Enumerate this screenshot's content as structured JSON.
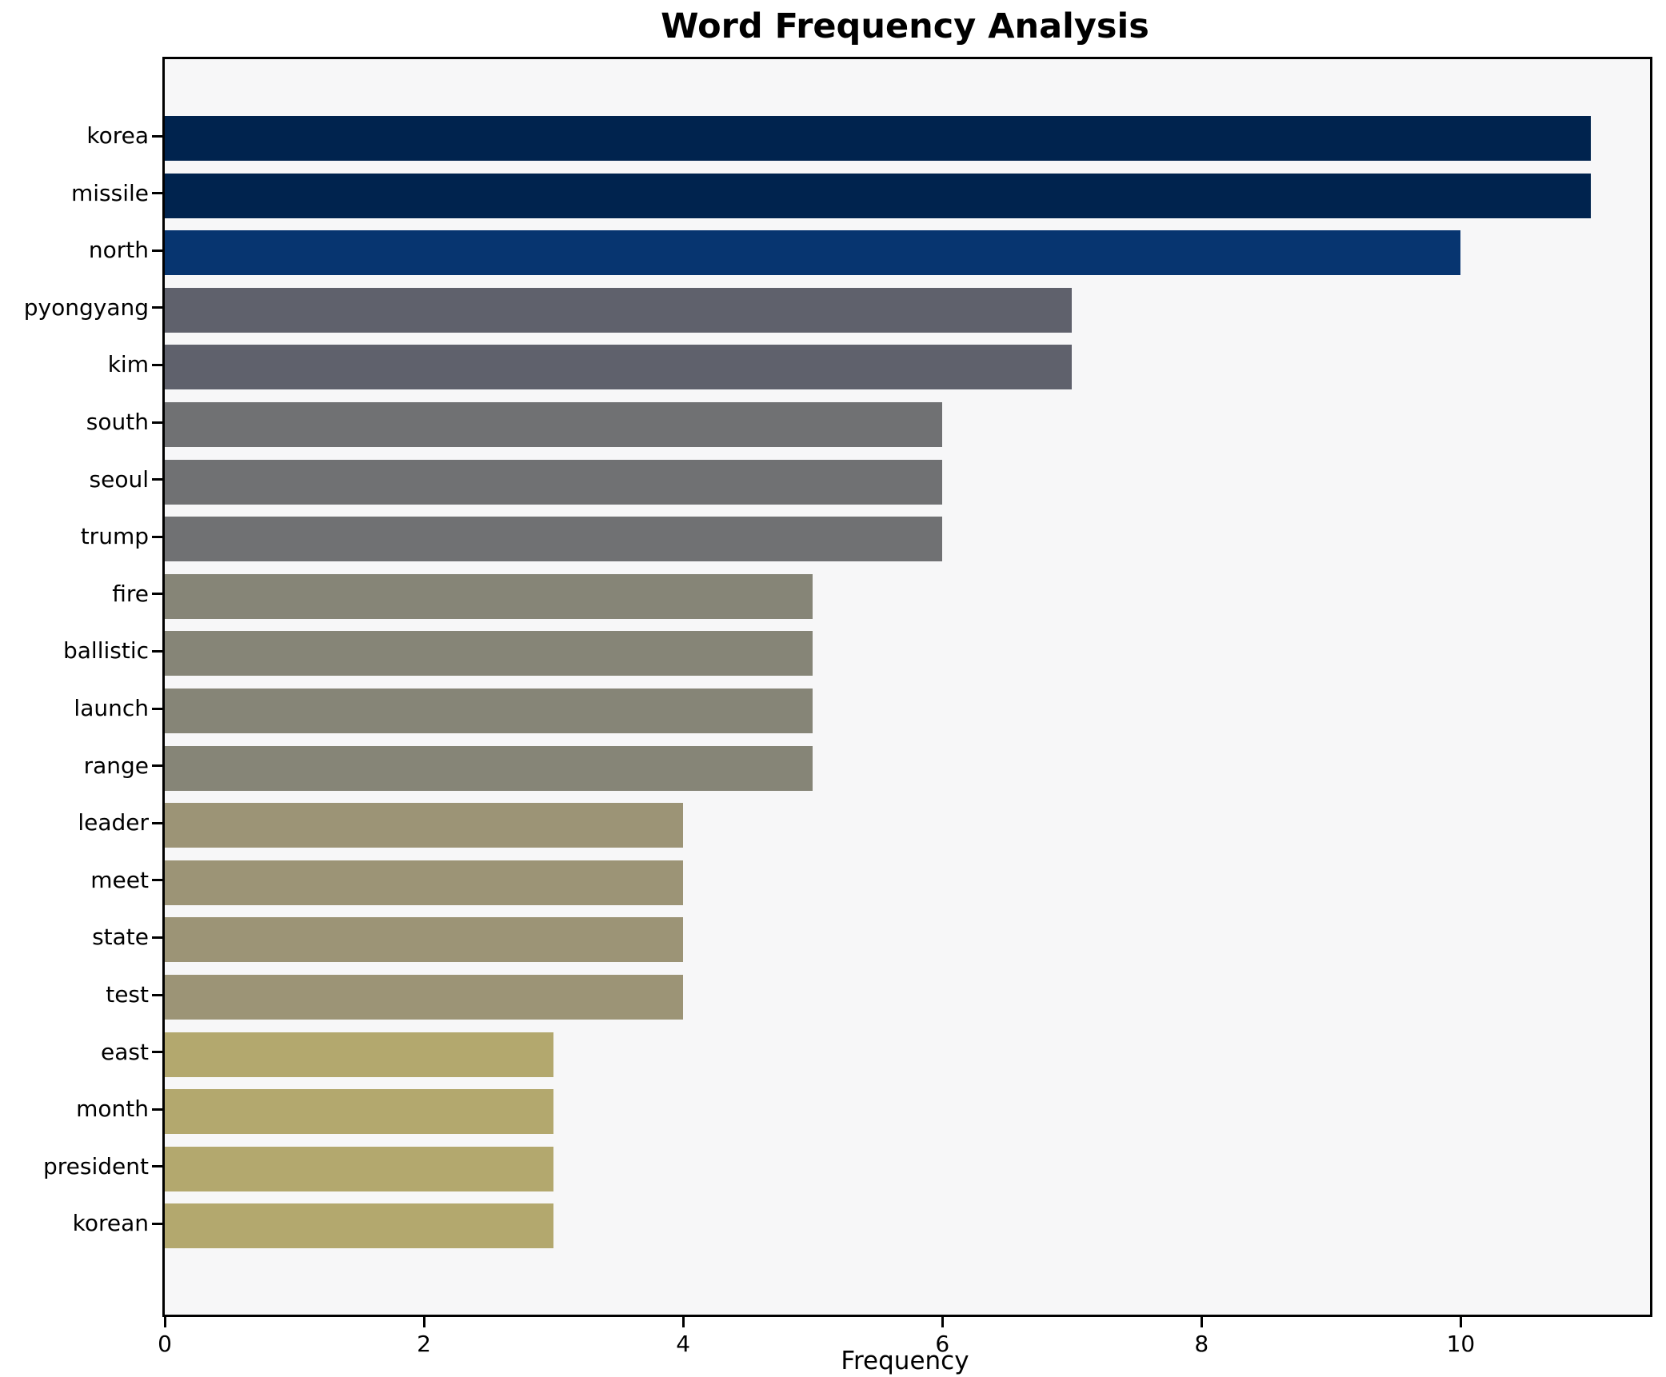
{
  "title": "Word Frequency Analysis",
  "chart_data": {
    "type": "bar",
    "orientation": "horizontal",
    "title": "Word Frequency Analysis",
    "xlabel": "Frequency",
    "ylabel": "",
    "categories": [
      "korea",
      "missile",
      "north",
      "pyongyang",
      "kim",
      "south",
      "seoul",
      "trump",
      "fire",
      "ballistic",
      "launch",
      "range",
      "leader",
      "meet",
      "state",
      "test",
      "east",
      "month",
      "president",
      "korean"
    ],
    "values": [
      11,
      11,
      10,
      7,
      7,
      6,
      6,
      6,
      5,
      5,
      5,
      5,
      4,
      4,
      4,
      4,
      3,
      3,
      3,
      3
    ],
    "bar_colors": [
      "#00234e",
      "#00234e",
      "#073570",
      "#5f616c",
      "#5f616c",
      "#707173",
      "#707173",
      "#707173",
      "#868577",
      "#868577",
      "#868577",
      "#868577",
      "#9c9476",
      "#9c9476",
      "#9c9476",
      "#9c9476",
      "#b3a86e",
      "#b3a86e",
      "#b3a86e",
      "#b3a86e"
    ],
    "xlim": [
      0,
      11.46
    ],
    "xticks": [
      0,
      2,
      4,
      6,
      8,
      10
    ],
    "grid": false,
    "legend": null,
    "plot_background": "#f7f7f8",
    "figure_background": "#ffffff",
    "colormap": "cividis"
  }
}
